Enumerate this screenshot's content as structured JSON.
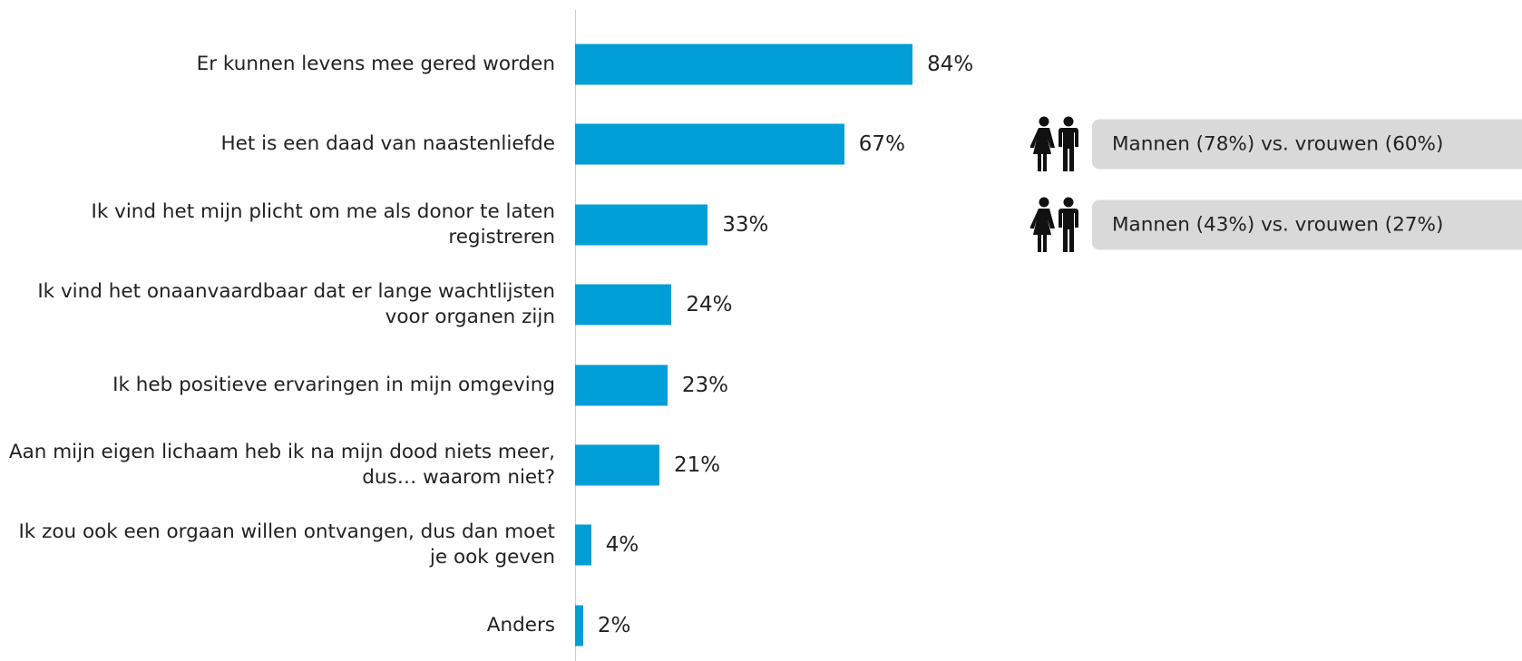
{
  "chart_data": {
    "type": "bar",
    "orientation": "horizontal",
    "categories": [
      "Er kunnen levens mee gered worden",
      "Het is een daad van naastenliefde",
      "Ik vind het mijn plicht om me als donor te laten registreren",
      "Ik vind het onaanvaardbaar dat er lange wachtlijsten voor organen zijn",
      "Ik heb positieve ervaringen in mijn omgeving",
      "Aan mijn eigen lichaam heb ik na mijn dood niets meer, dus… waarom niet?",
      "Ik zou ook een orgaan willen ontvangen, dus dan moet je ook geven",
      "Anders"
    ],
    "values": [
      84,
      67,
      33,
      24,
      23,
      21,
      4,
      2
    ],
    "value_labels": [
      "84%",
      "67%",
      "33%",
      "24%",
      "23%",
      "21%",
      "4%",
      "2%"
    ],
    "color": "#009ed6",
    "xlim": [
      0,
      100
    ],
    "annotations": [
      {
        "text": "Mannen (78%) vs. vrouwen (60%)"
      },
      {
        "text": "Mannen (43%) vs. vrouwen (27%)"
      }
    ]
  }
}
